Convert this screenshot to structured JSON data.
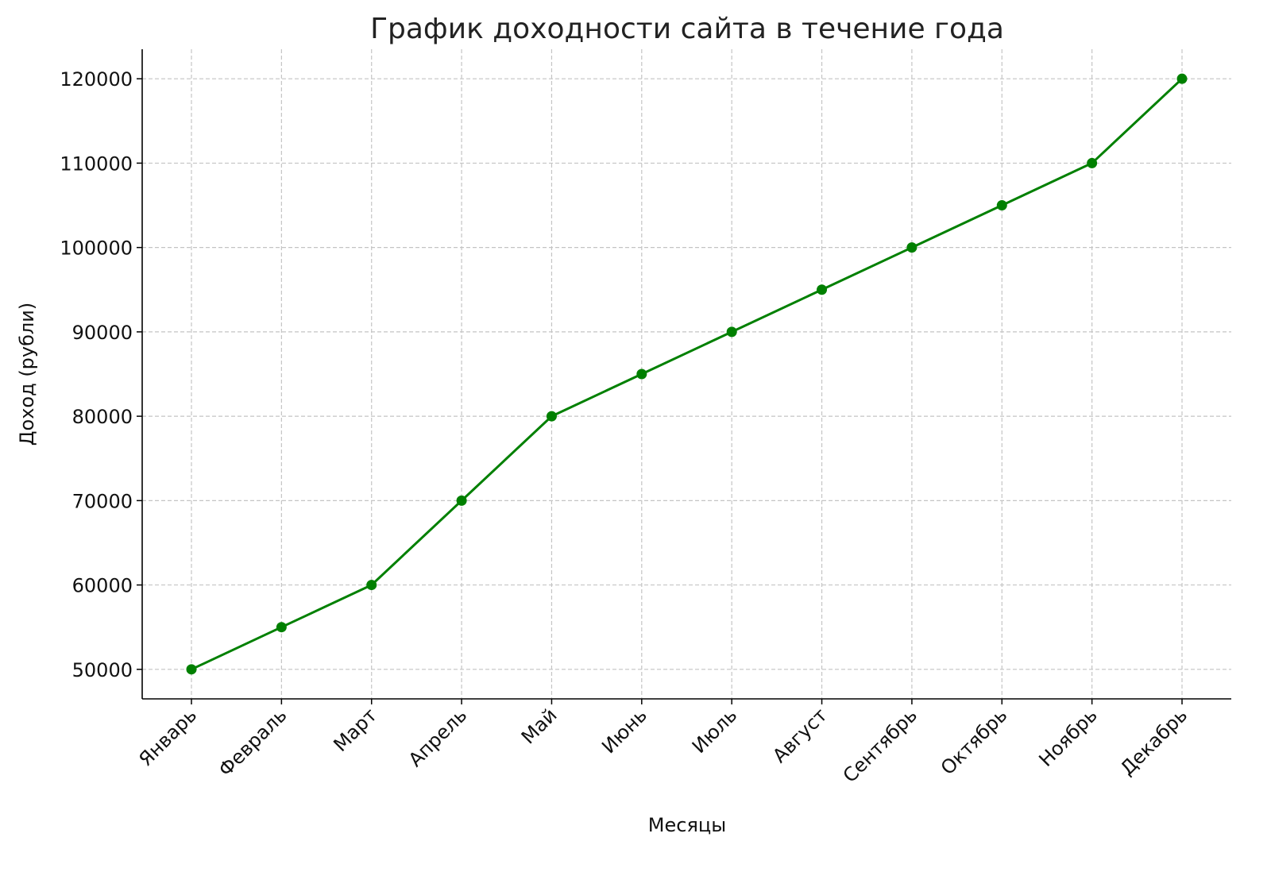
{
  "chart_data": {
    "type": "line",
    "title": "График доходности сайта в течение года",
    "xlabel": "Месяцы",
    "ylabel": "Доход (рубли)",
    "categories": [
      "Январь",
      "Февраль",
      "Март",
      "Апрель",
      "Май",
      "Июнь",
      "Июль",
      "Август",
      "Сентябрь",
      "Октябрь",
      "Ноябрь",
      "Декабрь"
    ],
    "series": [
      {
        "values": [
          50000,
          55000,
          60000,
          70000,
          80000,
          85000,
          90000,
          95000,
          100000,
          105000,
          110000,
          120000
        ],
        "color": "#008000",
        "marker": "circle"
      }
    ],
    "yticks": [
      50000,
      60000,
      70000,
      80000,
      90000,
      100000,
      110000,
      120000
    ],
    "ylim": [
      46500,
      123500
    ],
    "grid": true,
    "grid_style": "dashed"
  }
}
